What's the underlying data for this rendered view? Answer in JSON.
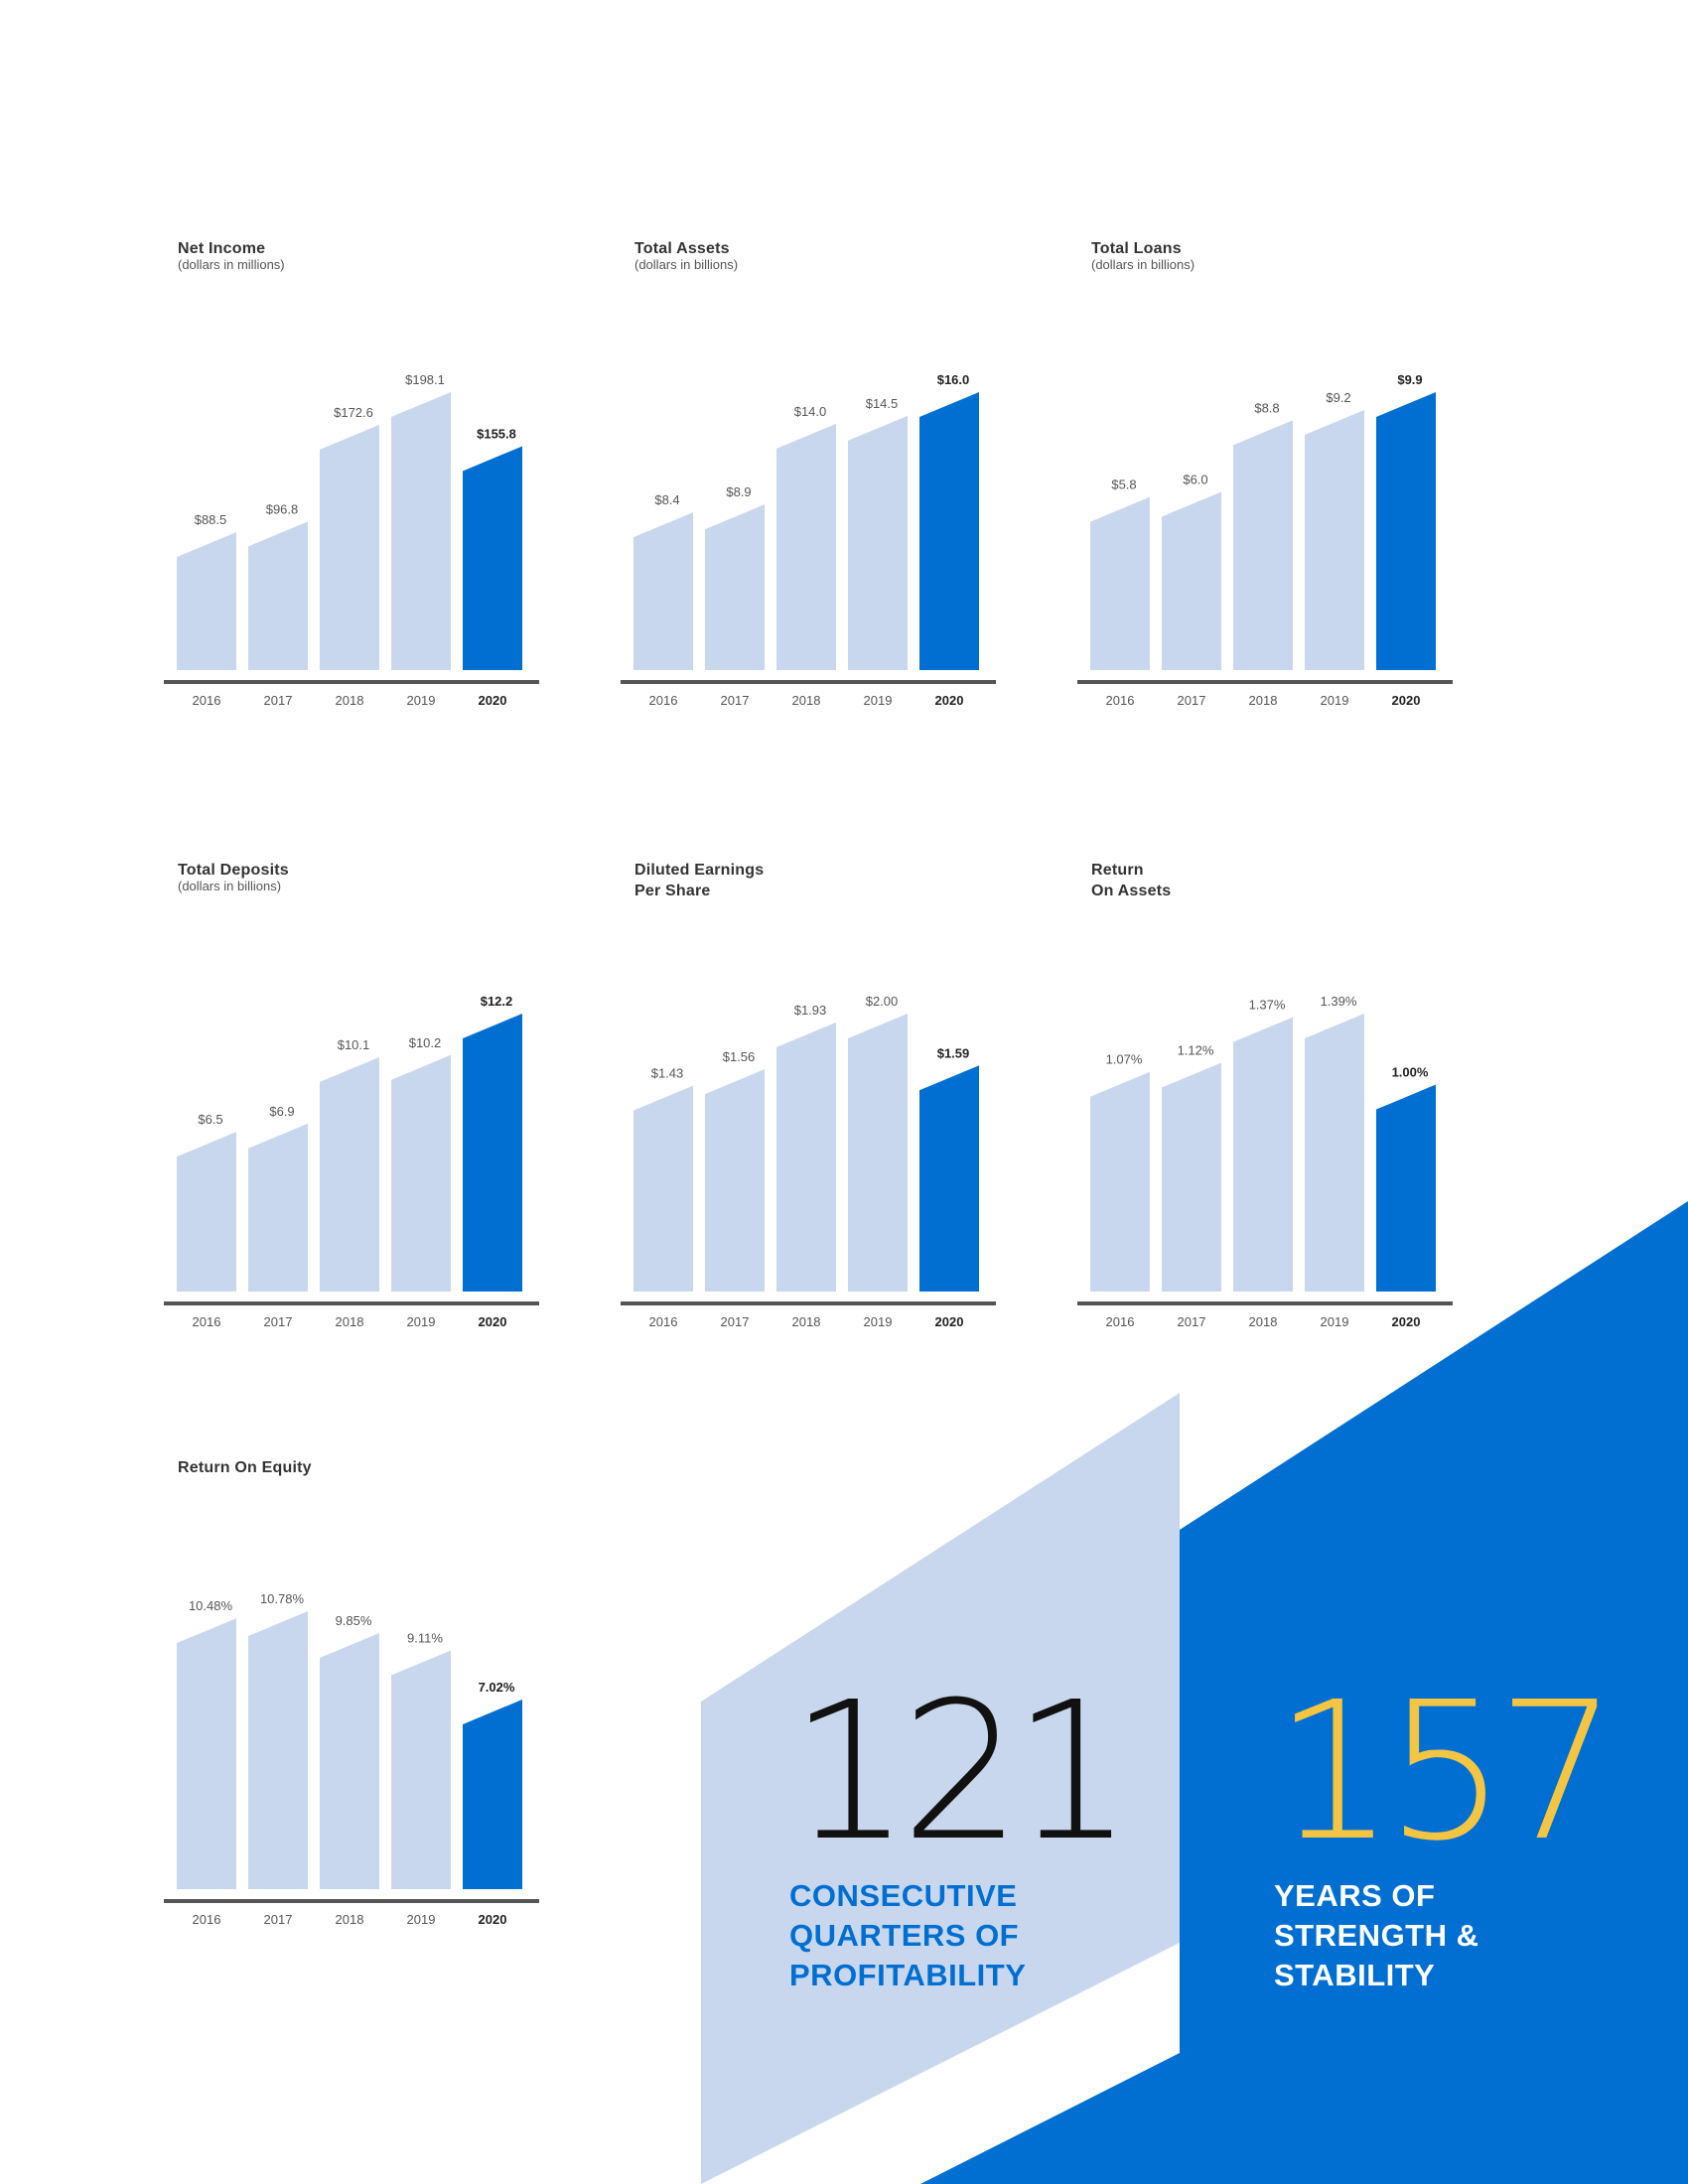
{
  "colors": {
    "bar_light": "#c9d7ee",
    "bar_highlight": "#006fd1",
    "axis": "#555555",
    "label": "#555555",
    "highlight_label": "#222222",
    "stat_black": "#111111",
    "stat_gold": "#f4c542",
    "stat_blue": "#006fd1",
    "stat_white": "#ffffff"
  },
  "chart_data": [
    {
      "type": "bar",
      "title": "Net Income",
      "subtitle": "(dollars in millions)",
      "categories": [
        "2016",
        "2017",
        "2018",
        "2019",
        "2020"
      ],
      "values": [
        88.5,
        96.8,
        172.6,
        198.1,
        155.8
      ],
      "labels": [
        "$88.5",
        "$96.8",
        "$172.6",
        "$198.1",
        "$155.8"
      ],
      "highlight_index": 4,
      "ylim": [
        0,
        198.1
      ]
    },
    {
      "type": "bar",
      "title": "Total Assets",
      "subtitle": "(dollars in billions)",
      "categories": [
        "2016",
        "2017",
        "2018",
        "2019",
        "2020"
      ],
      "values": [
        8.4,
        8.9,
        14.0,
        14.5,
        16.0
      ],
      "labels": [
        "$8.4",
        "$8.9",
        "$14.0",
        "$14.5",
        "$16.0"
      ],
      "highlight_index": 4,
      "ylim": [
        0,
        16.0
      ]
    },
    {
      "type": "bar",
      "title": "Total Loans",
      "subtitle": "(dollars in billions)",
      "categories": [
        "2016",
        "2017",
        "2018",
        "2019",
        "2020"
      ],
      "values": [
        5.8,
        6.0,
        8.8,
        9.2,
        9.9
      ],
      "labels": [
        "$5.8",
        "$6.0",
        "$8.8",
        "$9.2",
        "$9.9"
      ],
      "highlight_index": 4,
      "ylim": [
        0,
        9.9
      ]
    },
    {
      "type": "bar",
      "title": "Total Deposits",
      "subtitle": "(dollars in billions)",
      "categories": [
        "2016",
        "2017",
        "2018",
        "2019",
        "2020"
      ],
      "values": [
        6.5,
        6.9,
        10.1,
        10.2,
        12.2
      ],
      "labels": [
        "$6.5",
        "$6.9",
        "$10.1",
        "$10.2",
        "$12.2"
      ],
      "highlight_index": 4,
      "ylim": [
        0,
        12.2
      ]
    },
    {
      "type": "bar",
      "title": "Diluted Earnings\nPer Share",
      "subtitle": "",
      "categories": [
        "2016",
        "2017",
        "2018",
        "2019",
        "2020"
      ],
      "values": [
        1.43,
        1.56,
        1.93,
        2.0,
        1.59
      ],
      "labels": [
        "$1.43",
        "$1.56",
        "$1.93",
        "$2.00",
        "$1.59"
      ],
      "highlight_index": 4,
      "ylim": [
        0,
        2.0
      ]
    },
    {
      "type": "bar",
      "title": "Return\nOn Assets",
      "subtitle": "",
      "categories": [
        "2016",
        "2017",
        "2018",
        "2019",
        "2020"
      ],
      "values": [
        1.07,
        1.12,
        1.37,
        1.39,
        1.0
      ],
      "labels": [
        "1.07%",
        "1.12%",
        "1.37%",
        "1.39%",
        "1.00%"
      ],
      "highlight_index": 4,
      "ylim": [
        0,
        1.39
      ]
    },
    {
      "type": "bar",
      "title": "Return On Equity",
      "subtitle": "",
      "categories": [
        "2016",
        "2017",
        "2018",
        "2019",
        "2020"
      ],
      "values": [
        10.48,
        10.78,
        9.85,
        9.11,
        7.02
      ],
      "labels": [
        "10.48%",
        "10.78%",
        "9.85%",
        "9.11%",
        "7.02%"
      ],
      "highlight_index": 4,
      "ylim": [
        0,
        10.78
      ]
    }
  ],
  "stats": [
    {
      "number": "121",
      "label": "CONSECUTIVE\nQUARTERS OF\nPROFITABILITY"
    },
    {
      "number": "157",
      "label": "YEARS OF\nSTRENGTH &\nSTABILITY"
    }
  ]
}
